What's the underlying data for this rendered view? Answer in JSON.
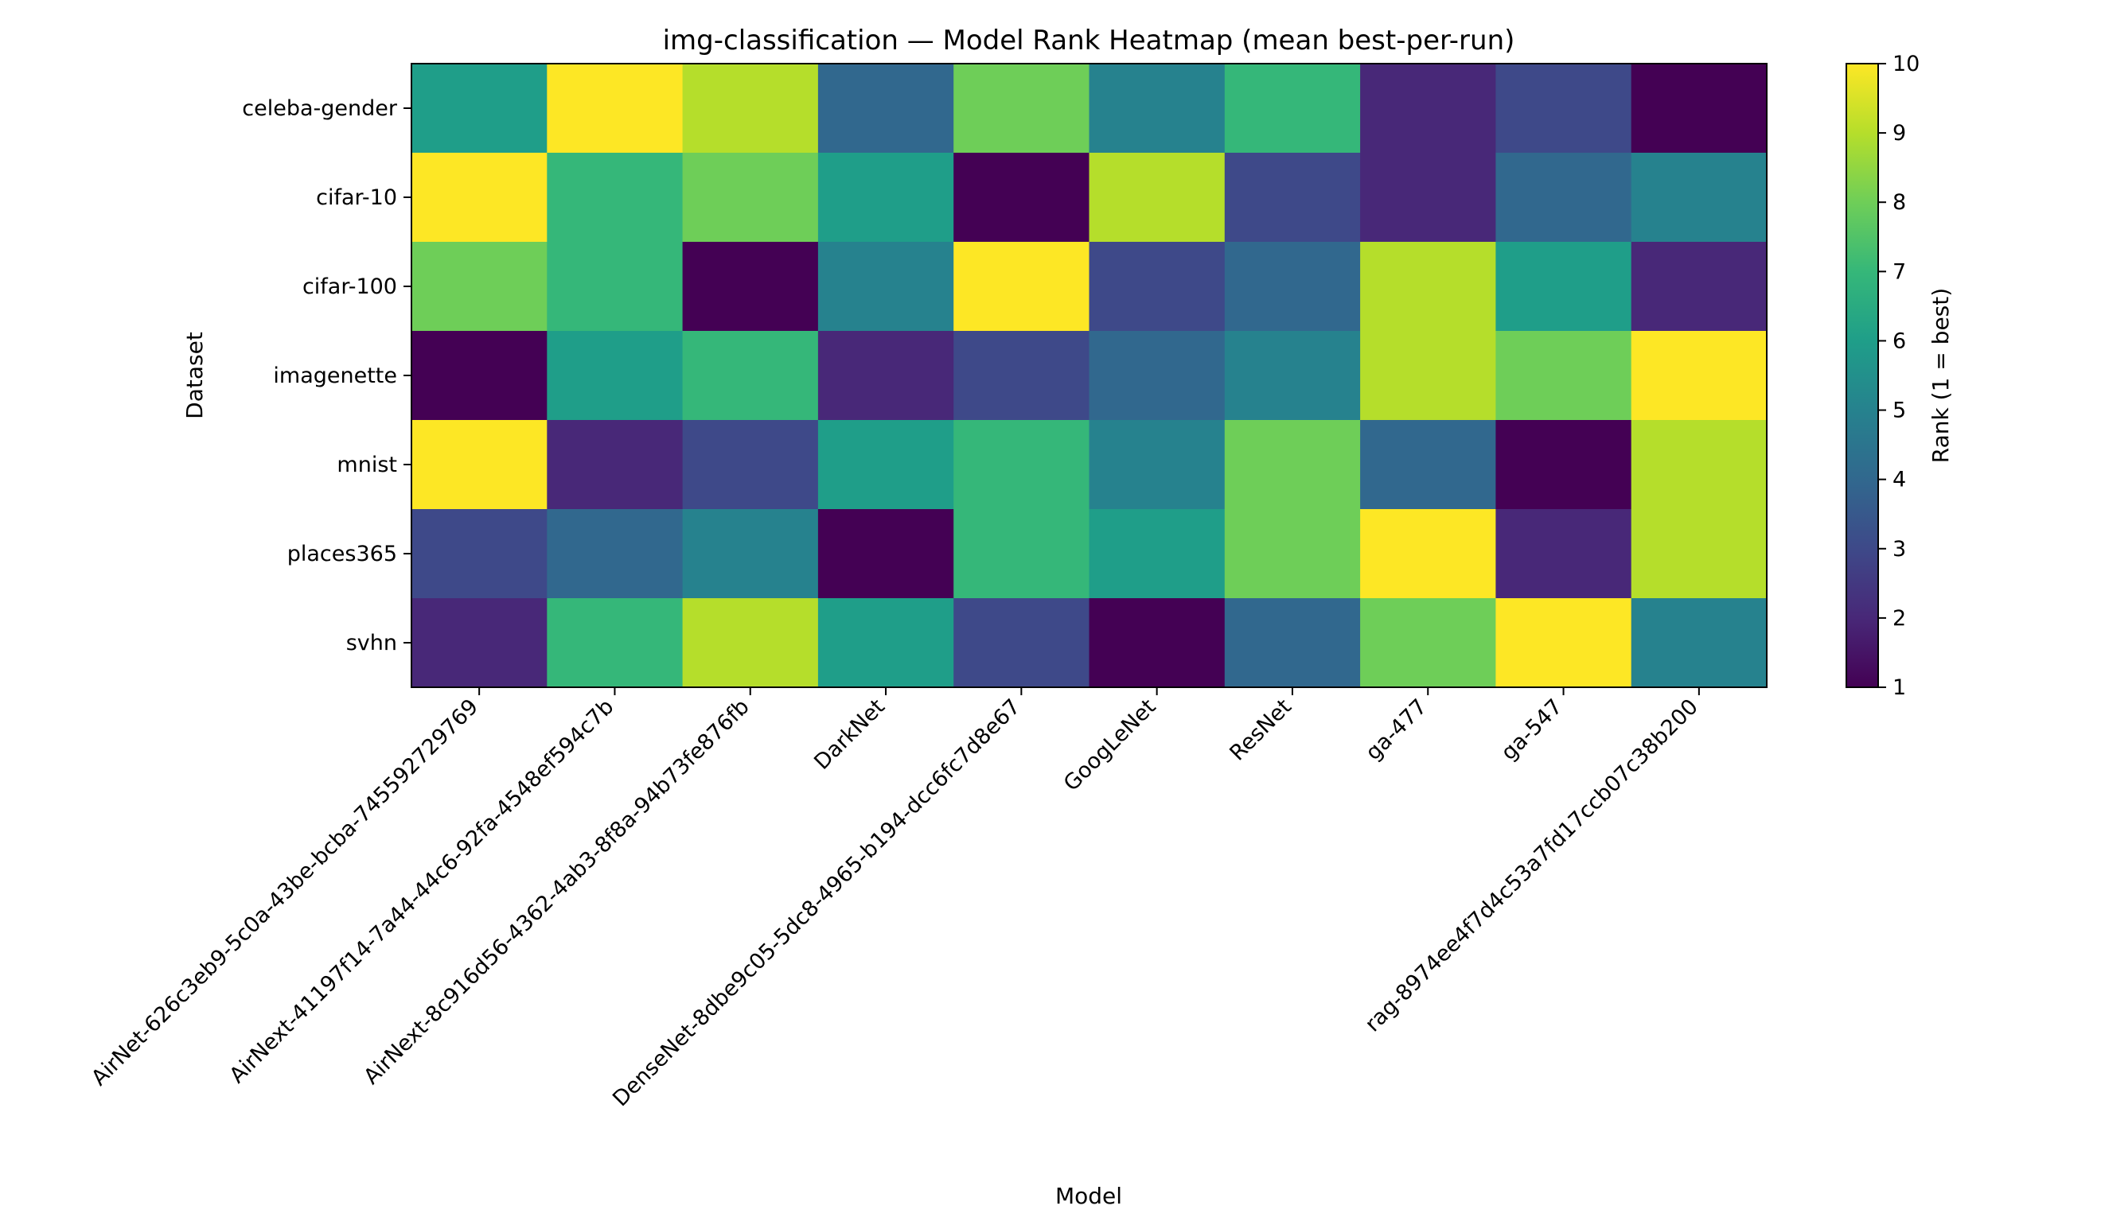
{
  "chart_data": {
    "type": "heatmap",
    "title": "img-classification — Model Rank Heatmap (mean best-per-run)",
    "xlabel": "Model",
    "ylabel": "Dataset",
    "colorbar_label": "Rank (1 = best)",
    "colormap": "viridis",
    "color_range": [
      1,
      10
    ],
    "colorbar_ticks": [
      "1",
      "2",
      "3",
      "4",
      "5",
      "6",
      "7",
      "8",
      "9",
      "10"
    ],
    "x_categories": [
      "AirNet-626c3eb9-5c0a-43be-bcba-745592729769",
      "AirNext-41197f14-7a44-44c6-92fa-4548ef594c7b",
      "AirNext-8c916d56-4362-4ab3-8f8a-94b73fe876fb",
      "DarkNet",
      "DenseNet-8dbe9c05-5dc8-4965-b194-dcc6fc7d8e67",
      "GoogLeNet",
      "ResNet",
      "ga-477",
      "ga-547",
      "rag-8974ee4f7d4c53a7fd17ccb07c38b200"
    ],
    "y_categories": [
      "celeba-gender",
      "cifar-10",
      "cifar-100",
      "imagenette",
      "mnist",
      "places365",
      "svhn"
    ],
    "values": [
      [
        6,
        10,
        9,
        4,
        8,
        5,
        7,
        2,
        3,
        1
      ],
      [
        10,
        7,
        8,
        6,
        1,
        9,
        3,
        2,
        4,
        5
      ],
      [
        8,
        7,
        1,
        5,
        10,
        3,
        4,
        9,
        6,
        2
      ],
      [
        1,
        6,
        7,
        2,
        3,
        4,
        5,
        9,
        8,
        10
      ],
      [
        10,
        2,
        3,
        6,
        7,
        5,
        8,
        4,
        1,
        9
      ],
      [
        3,
        4,
        5,
        1,
        7,
        6,
        8,
        10,
        2,
        9
      ],
      [
        2,
        7,
        9,
        6,
        3,
        1,
        4,
        8,
        10,
        5
      ]
    ]
  }
}
